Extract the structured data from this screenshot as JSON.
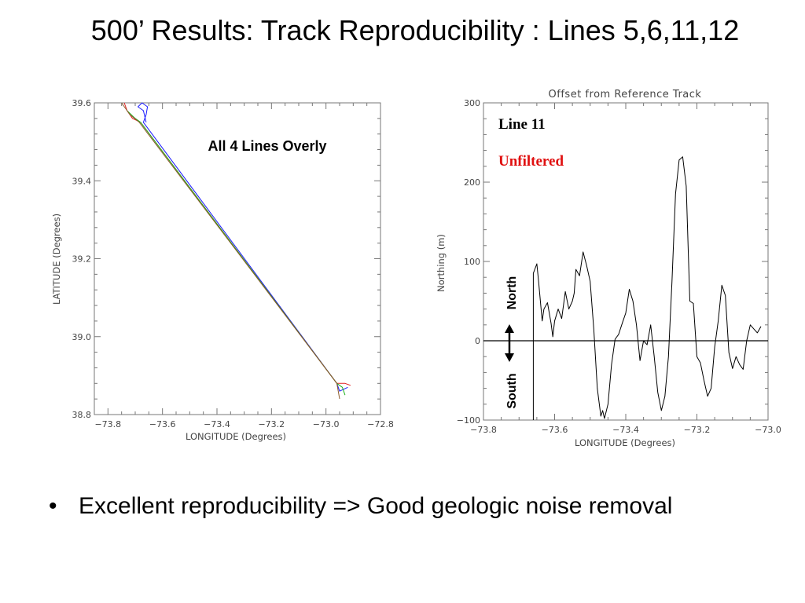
{
  "slide": {
    "title": "500’ Results: Track Reproducibility : Lines 5,6,11,12",
    "bullet": "Excellent reproducibility => Good geologic noise removal"
  },
  "chart_data": [
    {
      "type": "line",
      "title": "",
      "annotation": "All 4 Lines Overly",
      "xlabel": "LONGITUDE (Degrees)",
      "ylabel": "LATITUDE (Degrees)",
      "xlim": [
        -73.85,
        -72.8
      ],
      "ylim": [
        38.8,
        39.6
      ],
      "xticks": [
        -73.8,
        -73.6,
        -73.4,
        -73.2,
        -73.0,
        -72.8
      ],
      "yticks": [
        38.8,
        39.0,
        39.2,
        39.4,
        39.6
      ],
      "xtick_labels": [
        "−73.8",
        "−73.6",
        "−73.4",
        "−73.2",
        "−73.0",
        "−72.8"
      ],
      "ytick_labels": [
        "38.8",
        "39.0",
        "39.2",
        "39.4",
        "39.6"
      ],
      "series": [
        {
          "color": "#1a1aff",
          "x": [
            -73.66,
            -73.67,
            -73.69,
            -73.675,
            -73.655,
            -73.66,
            -73.67,
            -72.96,
            -72.95,
            -72.92
          ],
          "y": [
            39.55,
            39.58,
            39.59,
            39.6,
            39.59,
            39.57,
            39.55,
            38.88,
            38.86,
            38.87
          ]
        },
        {
          "color": "#e02020",
          "x": [
            -73.74,
            -73.73,
            -73.71,
            -73.68,
            -72.96,
            -72.93,
            -72.91
          ],
          "y": [
            39.6,
            39.58,
            39.56,
            39.55,
            38.88,
            38.88,
            38.875
          ]
        },
        {
          "color": "#20b020",
          "x": [
            -73.73,
            -73.7,
            -73.68,
            -72.96,
            -72.94,
            -72.93
          ],
          "y": [
            39.58,
            39.56,
            39.55,
            38.88,
            38.87,
            38.85
          ]
        },
        {
          "color": "#8b5a2b",
          "x": [
            -73.75,
            -73.72,
            -73.685,
            -72.96,
            -72.95
          ],
          "y": [
            39.6,
            39.57,
            39.55,
            38.88,
            38.84
          ]
        }
      ]
    },
    {
      "type": "line",
      "title": "Offset from Reference Track",
      "annotations": [
        "Line 11",
        "Unfiltered",
        "North",
        "South"
      ],
      "xlabel": "LONGITUDE (Degrees)",
      "ylabel": "Northing (m)",
      "xlim": [
        -73.8,
        -73.0
      ],
      "ylim": [
        -100,
        300
      ],
      "xticks": [
        -73.8,
        -73.6,
        -73.4,
        -73.2,
        -73.0
      ],
      "yticks": [
        -100,
        0,
        100,
        200,
        300
      ],
      "xtick_labels": [
        "−73.8",
        "−73.6",
        "−73.4",
        "−73.2",
        "−73.0"
      ],
      "ytick_labels": [
        "−100",
        "0",
        "100",
        "200",
        "300"
      ],
      "zero_line": 0,
      "series": [
        {
          "color": "#000000",
          "x": [
            -73.66,
            -73.66,
            -73.65,
            -73.645,
            -73.635,
            -73.63,
            -73.62,
            -73.61,
            -73.605,
            -73.6,
            -73.59,
            -73.58,
            -73.57,
            -73.56,
            -73.55,
            -73.545,
            -73.54,
            -73.53,
            -73.52,
            -73.51,
            -73.5,
            -73.49,
            -73.48,
            -73.47,
            -73.465,
            -73.46,
            -73.45,
            -73.44,
            -73.43,
            -73.42,
            -73.41,
            -73.4,
            -73.39,
            -73.38,
            -73.37,
            -73.36,
            -73.35,
            -73.34,
            -73.33,
            -73.32,
            -73.31,
            -73.3,
            -73.29,
            -73.28,
            -73.27,
            -73.26,
            -73.25,
            -73.24,
            -73.23,
            -73.22,
            -73.21,
            -73.2,
            -73.19,
            -73.18,
            -73.17,
            -73.16,
            -73.15,
            -73.14,
            -73.13,
            -73.12,
            -73.11,
            -73.1,
            -73.09,
            -73.08,
            -73.07,
            -73.06,
            -73.05,
            -73.04,
            -73.03,
            -73.02
          ],
          "y": [
            -100,
            85,
            97,
            75,
            25,
            40,
            48,
            22,
            5,
            25,
            40,
            28,
            62,
            40,
            50,
            60,
            90,
            82,
            112,
            95,
            75,
            15,
            -60,
            -95,
            -88,
            -98,
            -80,
            -30,
            2,
            8,
            22,
            35,
            65,
            50,
            20,
            -25,
            0,
            -5,
            20,
            -20,
            -65,
            -88,
            -70,
            -20,
            75,
            185,
            228,
            232,
            195,
            50,
            47,
            -20,
            -28,
            -50,
            -70,
            -60,
            -8,
            25,
            70,
            57,
            -15,
            -35,
            -20,
            -30,
            -36,
            0,
            20,
            15,
            10,
            18
          ]
        }
      ]
    }
  ]
}
